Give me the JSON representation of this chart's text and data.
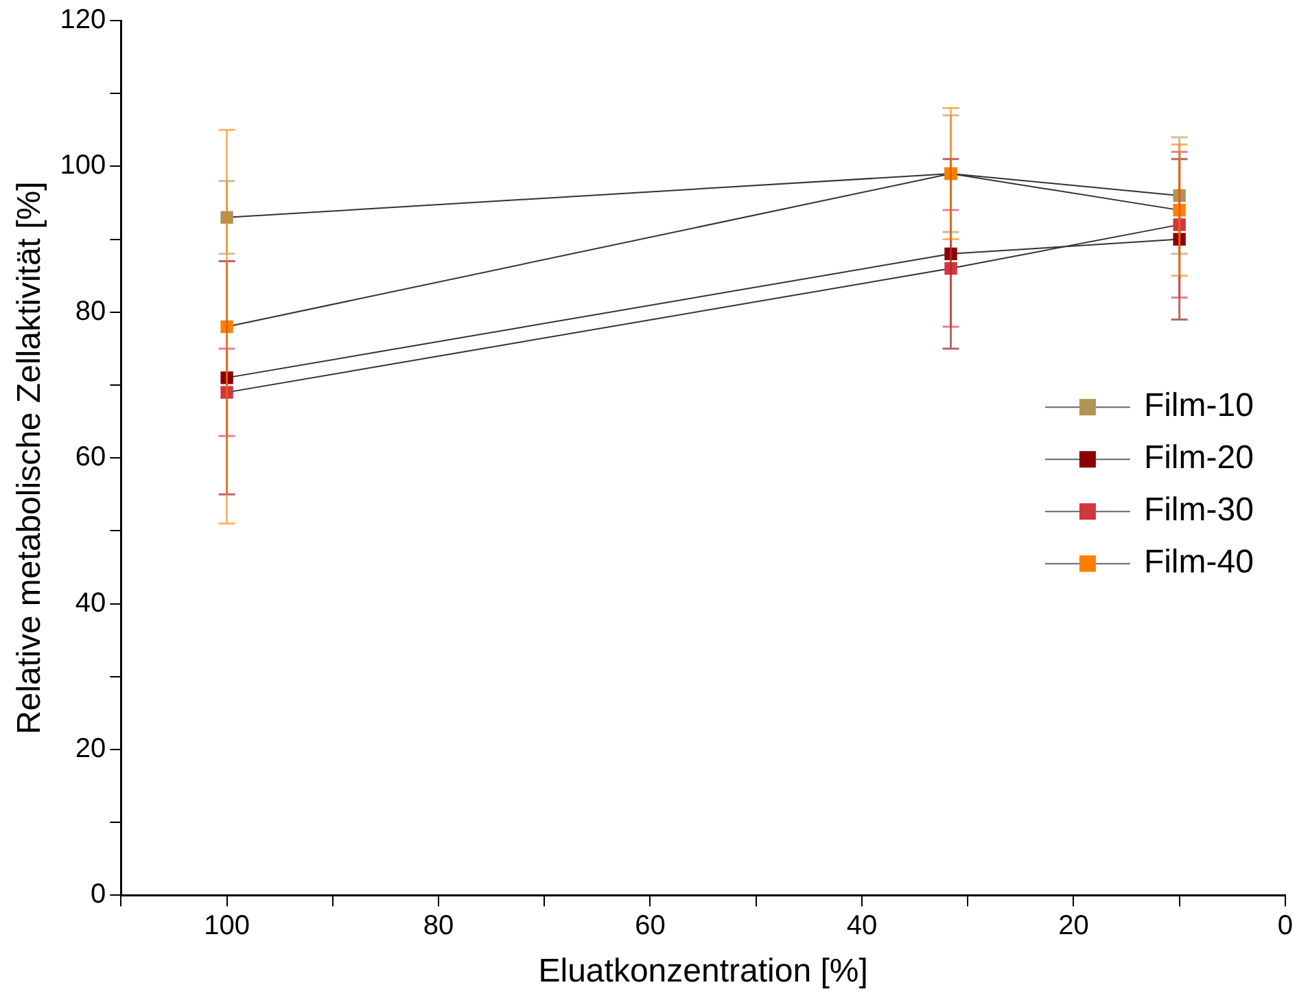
{
  "chart_data": {
    "type": "line",
    "xlabel": "Eluatkonzentration [%]",
    "ylabel": "Relative metabolische Zellaktivität [%]",
    "x": [
      100,
      31.6,
      10
    ],
    "series": [
      {
        "name": "Film-10",
        "color": "#b39256",
        "values": [
          93,
          99,
          96
        ],
        "errors": [
          5,
          8,
          8
        ]
      },
      {
        "name": "Film-20",
        "color": "#8b0000",
        "values": [
          71,
          88,
          90
        ],
        "errors": [
          16,
          13,
          11
        ]
      },
      {
        "name": "Film-30",
        "color": "#d2353e",
        "values": [
          69,
          86,
          92
        ],
        "errors": [
          6,
          8,
          10
        ]
      },
      {
        "name": "Film-40",
        "color": "#ff8000",
        "values": [
          78,
          99,
          94
        ],
        "errors": [
          27,
          9,
          9
        ]
      }
    ],
    "xlim": [
      110,
      0
    ],
    "xticks": [
      {
        "value": 110,
        "label": null
      },
      100,
      {
        "value": 90,
        "label": null
      },
      80,
      {
        "value": 70,
        "label": null
      },
      60,
      {
        "value": 50,
        "label": null
      },
      40,
      {
        "value": 30,
        "label": null
      },
      20,
      {
        "value": 10,
        "label": null
      },
      0
    ],
    "ylim": [
      0,
      120
    ],
    "yticks": [
      0,
      {
        "value": 10,
        "label": null
      },
      20,
      {
        "value": 30,
        "label": null
      },
      40,
      {
        "value": 50,
        "label": null
      },
      60,
      {
        "value": 70,
        "label": null
      },
      80,
      {
        "value": 90,
        "label": null
      },
      100,
      {
        "value": 110,
        "label": null
      },
      120
    ],
    "grid": false,
    "legend": "right",
    "marker": "square",
    "line_style": "solid"
  }
}
